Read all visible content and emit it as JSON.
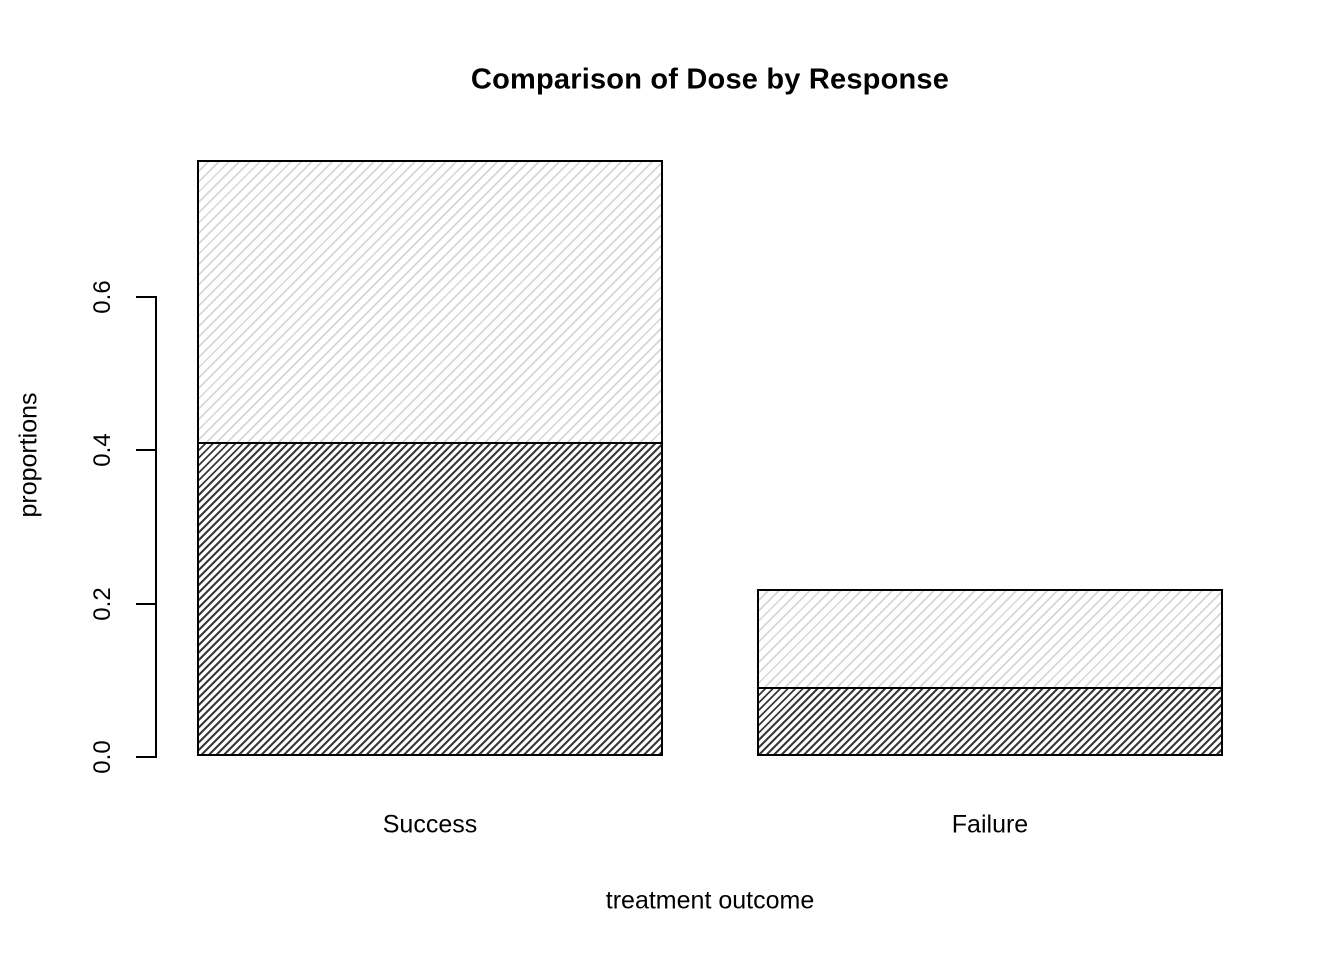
{
  "title": "Comparison of Dose by Response",
  "chart_data": {
    "type": "bar",
    "stacked": true,
    "title": "Comparison of Dose by Response",
    "xlabel": "treatment outcome",
    "ylabel": "proportions",
    "categories": [
      "Success",
      "Failure"
    ],
    "series": [
      {
        "name": "bottom-segment-dense-dark-hatch",
        "values": [
          0.41,
          0.09
        ]
      },
      {
        "name": "top-segment-sparse-light-hatch",
        "values": [
          0.37,
          0.13
        ]
      }
    ],
    "stack_totals": [
      0.78,
      0.22
    ],
    "yticks": [
      0.0,
      0.2,
      0.4,
      0.6
    ],
    "ytick_labels": [
      "0.0",
      "0.2",
      "0.4",
      "0.6"
    ],
    "y_axis_range": [
      0.0,
      0.6
    ],
    "ylim": [
      0.0,
      0.78
    ],
    "grid": "off",
    "legend": "none",
    "colors": {
      "background": "#ffffff",
      "bar_border": "#000000",
      "hatch_dark": "#3a3a3a",
      "hatch_light": "#d6d6d6",
      "text": "#000000"
    },
    "hatch_style": {
      "direction": "forward-slash-45deg",
      "bottom_segment": "dense dark diagonal lines",
      "top_segment": "sparse light diagonal lines"
    }
  }
}
